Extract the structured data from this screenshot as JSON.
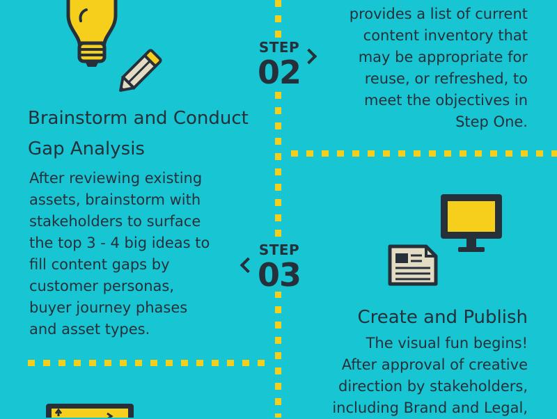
{
  "step2": {
    "word": "STEP",
    "number": "02",
    "body_lines": [
      "provides a list of current",
      "content inventory that",
      "may be appropriate for",
      "reuse, or refreshed, to",
      "meet the objectives in",
      "Step One."
    ]
  },
  "step3": {
    "word": "STEP",
    "number": "03",
    "title_lines": [
      "Brainstorm and Conduct",
      "Gap Analysis"
    ],
    "body_lines": [
      "After reviewing existing",
      "assets, brainstorm with",
      "stakeholders to surface",
      "the top 3 - 4 big ideas to",
      "fill content gaps by",
      "customer personas,",
      "buyer journey phases",
      "and asset types."
    ]
  },
  "step4": {
    "title": "Create and Publish",
    "body_lines": [
      "The visual fun begins!",
      "After approval of creative",
      "direction by stakeholders,",
      "including Brand and Legal,"
    ]
  },
  "icons": {
    "lightbulb": "lightbulb-icon",
    "pencil": "pencil-icon",
    "monitor": "monitor-icon",
    "document": "document-icon",
    "browser": "browser-window-icon"
  },
  "colors": {
    "background": "#17c6d2",
    "accent_yellow": "#f6cf1d",
    "ink": "#26303b",
    "paper": "#e3dcc3"
  }
}
